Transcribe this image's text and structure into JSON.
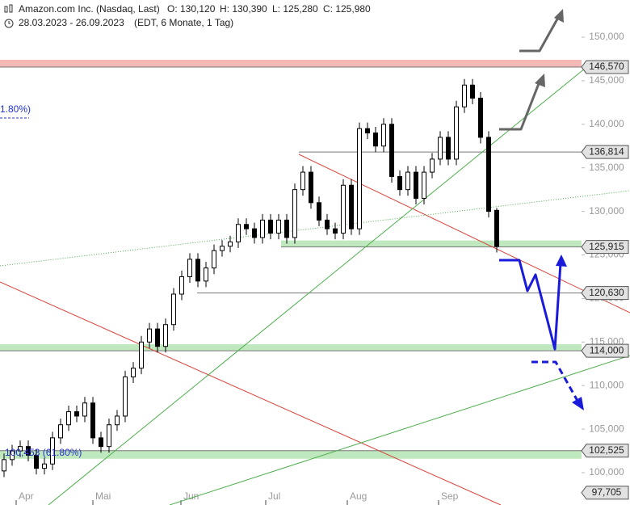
{
  "chart_data": {
    "type": "candlestick",
    "title": "Amazon.com Inc. (Nasdaq, Last)",
    "header_ohlc": [
      "O: 130,120",
      "H: 130,390",
      "L: 125,280",
      "C: 125,980"
    ],
    "subtitle": "28.03.2023 - 26.09.2023",
    "subtitle_info": "(EDT, 6 Monate, 1 Tag)",
    "annotations": [
      "1.80%)",
      "100,453 (61.80%)"
    ],
    "up_color": "#ffffff",
    "down_color": "#000000",
    "xlim": [
      -0.5,
      71.5
    ],
    "xticks": [
      {
        "value": 1.5,
        "label": "Apr"
      },
      {
        "value": 11,
        "label": "Mai"
      },
      {
        "value": 21.9,
        "label": "Jun"
      },
      {
        "value": 32.4,
        "label": "Jul"
      },
      {
        "value": 42.5,
        "label": "Aug"
      },
      {
        "value": 53.8,
        "label": "Sep"
      }
    ],
    "ylim": [
      97200,
      152500
    ],
    "yticks": [
      {
        "value": 100000,
        "label": "100,000"
      },
      {
        "value": 105000,
        "label": "105,000"
      },
      {
        "value": 110000,
        "label": "110,000"
      },
      {
        "value": 115000,
        "label": "115,000"
      },
      {
        "value": 120000,
        "label": "120,000"
      },
      {
        "value": 125000,
        "label": "125,000"
      },
      {
        "value": 130000,
        "label": "130,000"
      },
      {
        "value": 135000,
        "label": "135,000"
      },
      {
        "value": 140000,
        "label": "140,000"
      },
      {
        "value": 145000,
        "label": "145,000"
      },
      {
        "value": 150000,
        "label": "150,000"
      }
    ],
    "levels": [
      {
        "value": 146570,
        "label": "146,570",
        "band": "#f4b9b6"
      },
      {
        "value": 136814,
        "label": "136,814"
      },
      {
        "value": 125915,
        "label": "125,915",
        "band": "#bfe8bf"
      },
      {
        "value": 120630,
        "label": "120,630"
      },
      {
        "value": 114000,
        "label": "114,000",
        "band": "#bfe8bf"
      },
      {
        "value": 102525,
        "label": "102,525",
        "band": "#bfe8bf"
      },
      {
        "value": 97705,
        "label": "97,705"
      }
    ],
    "x": [
      0,
      1,
      2,
      3,
      4,
      5,
      6,
      7,
      8,
      9,
      10,
      11,
      12,
      13,
      14,
      15,
      16,
      17,
      18,
      19,
      20,
      21,
      22,
      23,
      24,
      25,
      26,
      27,
      28,
      29,
      30,
      31,
      32,
      33,
      34,
      35,
      36,
      37,
      38,
      39,
      40,
      41,
      42,
      43,
      44,
      45,
      46,
      47,
      48,
      49,
      50,
      51,
      52,
      53,
      54,
      55,
      56,
      57,
      58,
      59,
      60,
      61
    ],
    "open": [
      100200,
      101500,
      102500,
      103000,
      102000,
      100500,
      101000,
      104000,
      105500,
      107000,
      106500,
      108000,
      104000,
      103000,
      105500,
      106500,
      111000,
      112000,
      115000,
      116500,
      114500,
      117000,
      120500,
      122500,
      124500,
      122000,
      123500,
      125500,
      126000,
      126500,
      128500,
      128000,
      127000,
      129000,
      127500,
      129000,
      127000,
      132500,
      134500,
      131000,
      129000,
      128000,
      127500,
      133000,
      128000,
      139500,
      139000,
      137500,
      140000,
      134000,
      132500,
      134500,
      131500,
      134500,
      136000,
      138500,
      136000,
      142000,
      144500,
      143000,
      138500,
      130120
    ],
    "high": [
      102200,
      103200,
      103700,
      103700,
      102700,
      101700,
      104700,
      106200,
      107700,
      107700,
      108700,
      108700,
      104700,
      106200,
      107200,
      111700,
      112700,
      115700,
      117200,
      117200,
      117700,
      121200,
      123200,
      125200,
      125200,
      124200,
      126200,
      126700,
      127200,
      129200,
      129200,
      128700,
      129700,
      129700,
      129700,
      129700,
      133200,
      135200,
      135200,
      131700,
      129700,
      128700,
      133700,
      133700,
      140200,
      140200,
      139700,
      140700,
      140700,
      134700,
      135200,
      135200,
      135200,
      136700,
      139200,
      139200,
      142700,
      145200,
      145200,
      143700,
      139200,
      130390
    ],
    "low": [
      99500,
      100800,
      101800,
      101300,
      99800,
      99800,
      100300,
      103300,
      104800,
      105800,
      105800,
      103300,
      102300,
      102300,
      104800,
      105800,
      110300,
      111300,
      114300,
      113800,
      113800,
      116300,
      119800,
      121800,
      121300,
      121300,
      122800,
      124800,
      125300,
      125800,
      127300,
      126300,
      126300,
      126800,
      126800,
      126300,
      126300,
      131800,
      130300,
      128300,
      127300,
      126800,
      126800,
      127300,
      127300,
      138300,
      136800,
      136800,
      133300,
      131800,
      131800,
      130800,
      130800,
      133800,
      135300,
      135300,
      135300,
      141300,
      142300,
      137800,
      129300,
      125280
    ],
    "close": [
      101500,
      102500,
      103000,
      102000,
      100500,
      101000,
      104000,
      105500,
      107000,
      106500,
      108000,
      104000,
      103000,
      105500,
      106500,
      111000,
      112000,
      115000,
      116500,
      114500,
      117000,
      120500,
      122500,
      124500,
      122000,
      123500,
      125500,
      126000,
      126500,
      128500,
      128000,
      127000,
      129000,
      127500,
      129000,
      127000,
      132500,
      134500,
      131000,
      129000,
      128000,
      127500,
      133000,
      128000,
      139500,
      139000,
      137500,
      140000,
      134000,
      132500,
      134500,
      131500,
      134500,
      136000,
      138500,
      136000,
      142000,
      144500,
      143000,
      138500,
      130000,
      125980
    ]
  }
}
